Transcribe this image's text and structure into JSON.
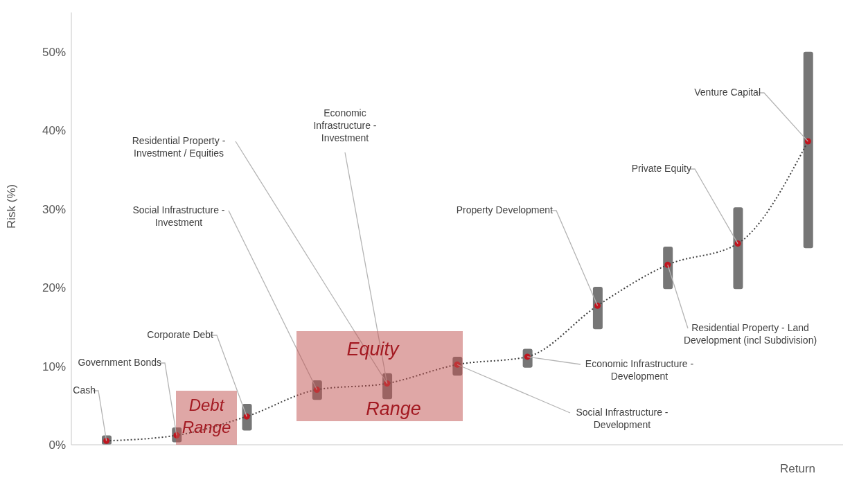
{
  "chart_data": {
    "type": "bar",
    "categories": [
      null,
      null,
      null,
      null,
      null,
      null,
      null,
      null,
      null,
      null,
      null
    ],
    "ylabel": "Risk (%)",
    "xlabel": "Return",
    "ylim": [
      0,
      55
    ],
    "yticks": [
      {
        "value": 0,
        "label": "0%"
      },
      {
        "value": 10,
        "label": "10%"
      },
      {
        "value": 20,
        "label": "20%"
      },
      {
        "value": 30,
        "label": "30%"
      },
      {
        "value": 40,
        "label": "40%"
      },
      {
        "value": 50,
        "label": "50%"
      }
    ],
    "grid": false,
    "tick_labels": "y",
    "series": [
      {
        "color": "#767676",
        "base": [
          0,
          0.3,
          1.8,
          5.7,
          5.8,
          8.8,
          9.8,
          14.7,
          19.8,
          19.8,
          25
        ],
        "values": [
          1.2,
          1.9,
          3.4,
          2.5,
          3.3,
          2.4,
          2.4,
          5.4,
          5.4,
          10.4,
          25
        ]
      },
      {
        "type": "line",
        "color": "#404040",
        "line_style": "dotted",
        "marker": "none",
        "values": [
          0.5,
          1.2,
          3.6,
          7.0,
          7.8,
          10.2,
          11.2,
          17.7,
          22.9,
          25.6,
          38.6
        ]
      },
      {
        "type": "scatter",
        "color": "#c0161f",
        "marker": "circle",
        "values": [
          0.5,
          1.2,
          3.6,
          7.0,
          7.8,
          10.2,
          11.2,
          17.7,
          22.9,
          25.6,
          38.6
        ]
      }
    ],
    "annotations": [
      "Cash",
      "Government Bonds",
      "Corporate Debt",
      "Social Infrastructure -\nInvestment",
      "Residential Property -\nInvestment / Equities",
      "Economic\nInfrastructure -\nInvestment",
      "Social Infrastructure -\nDevelopment",
      "Economic Infrastructure -\nDevelopment",
      "Property Development",
      "Residential Property - Land\nDevelopment (incl Subdivision)",
      "Private Equity",
      "Venture Capital",
      "Debt\nRange",
      "Equity\nRange"
    ]
  }
}
